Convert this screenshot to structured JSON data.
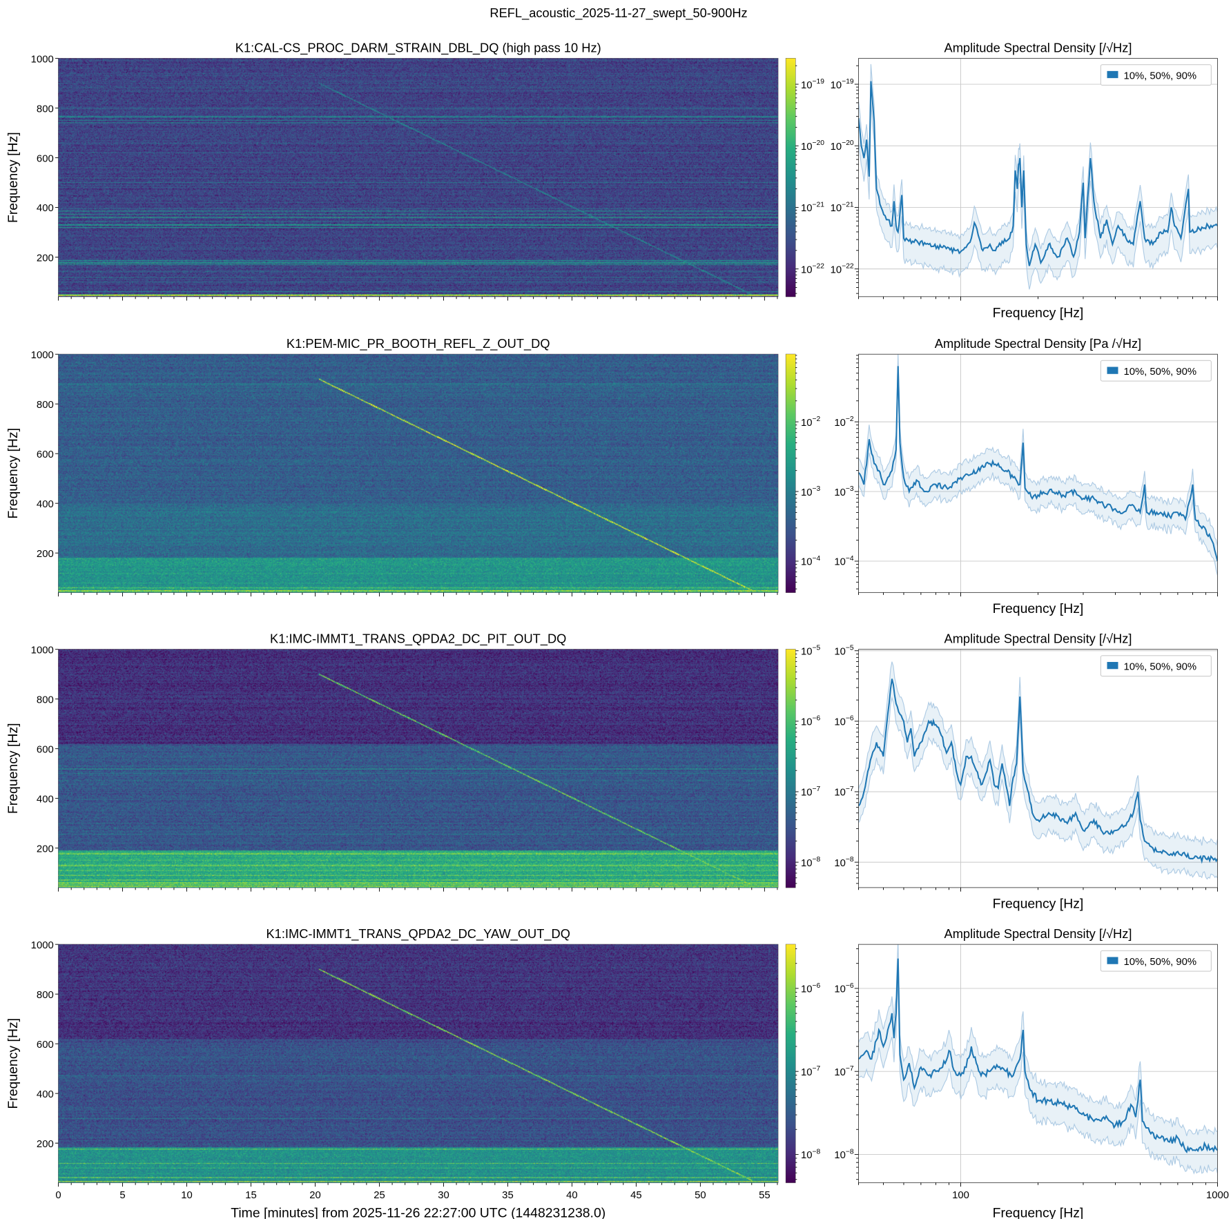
{
  "figure_title": "REFL_acoustic_2025-11-27_swept_50-900Hz",
  "colormap": [
    "#440154",
    "#472d7b",
    "#3b528b",
    "#2c728e",
    "#21918c",
    "#28ae80",
    "#5ec962",
    "#addc30",
    "#fde725"
  ],
  "asd_color": "#1f77b4",
  "chart_data": [
    {
      "type": "heatmap",
      "title": "K1:CAL-CS_PROC_DARM_STRAIN_DBL_DQ (high pass 10 Hz)",
      "ylabel": "Frequency [Hz]",
      "xlim": [
        0,
        56.05
      ],
      "ylim": [
        41,
        1000
      ],
      "xticks": [
        0,
        5,
        10,
        15,
        20,
        25,
        30,
        35,
        40,
        45,
        50,
        55
      ],
      "yticks": [
        200,
        400,
        600,
        800,
        1000
      ],
      "colorbar": {
        "scale": "log",
        "clim_log10": [
          -22.45,
          -18.58
        ],
        "tick_exponents": [
          -19,
          -20,
          -21,
          -22
        ]
      },
      "background_profile": [
        [
          41,
          1000,
          0.2
        ]
      ],
      "lines": [
        [
          45,
          0.7
        ],
        [
          50,
          0.55
        ],
        [
          62,
          0.2
        ],
        [
          100,
          0.12
        ],
        [
          120,
          0.15
        ],
        [
          140,
          0.1
        ],
        [
          170,
          0.3
        ],
        [
          175,
          0.3
        ],
        [
          180,
          0.25
        ],
        [
          185,
          0.3
        ],
        [
          190,
          0.15
        ],
        [
          320,
          0.25
        ],
        [
          330,
          0.3
        ],
        [
          345,
          0.2
        ],
        [
          360,
          0.3
        ],
        [
          372,
          0.3
        ],
        [
          385,
          0.25
        ],
        [
          395,
          0.15
        ],
        [
          420,
          0.1
        ],
        [
          480,
          0.12
        ],
        [
          500,
          0.15
        ],
        [
          520,
          0.12
        ],
        [
          560,
          0.08
        ],
        [
          620,
          0.08
        ],
        [
          660,
          0.1
        ],
        [
          740,
          0.18
        ],
        [
          750,
          0.2
        ],
        [
          765,
          0.18
        ],
        [
          800,
          0.08
        ],
        [
          880,
          0.12
        ],
        [
          900,
          0.08
        ]
      ],
      "sweep": {
        "start_min": 20.3,
        "start_hz": 900,
        "end_min": 54.0,
        "end_hz": 50,
        "level": 0.45
      }
    },
    {
      "type": "heatmap",
      "title": "K1:PEM-MIC_PR_BOOTH_REFL_Z_OUT_DQ",
      "ylabel": "Frequency [Hz]",
      "xlim": [
        0,
        56.05
      ],
      "ylim": [
        41,
        1000
      ],
      "xticks": [
        0,
        5,
        10,
        15,
        20,
        25,
        30,
        35,
        40,
        45,
        50,
        55
      ],
      "yticks": [
        200,
        400,
        600,
        800,
        1000
      ],
      "colorbar": {
        "scale": "log",
        "clim_log10": [
          -4.45,
          -1.03
        ],
        "tick_exponents": [
          -2,
          -3,
          -4
        ]
      },
      "background_profile": [
        [
          41,
          180,
          0.52
        ],
        [
          180,
          400,
          0.36
        ],
        [
          400,
          1000,
          0.3
        ]
      ],
      "lines": [
        [
          45,
          0.3
        ],
        [
          50,
          0.35
        ],
        [
          60,
          0.15
        ],
        [
          120,
          0.1
        ],
        [
          175,
          0.1
        ],
        [
          880,
          0.12
        ]
      ],
      "sweep": {
        "start_min": 20.3,
        "start_hz": 900,
        "end_min": 54.0,
        "end_hz": 50,
        "level": 0.95
      }
    },
    {
      "type": "heatmap",
      "title": "K1:IMC-IMMT1_TRANS_QPDA2_DC_PIT_OUT_DQ",
      "ylabel": "Frequency [Hz]",
      "xlim": [
        0,
        56.05
      ],
      "ylim": [
        41,
        1000
      ],
      "xticks": [
        0,
        5,
        10,
        15,
        20,
        25,
        30,
        35,
        40,
        45,
        50,
        55
      ],
      "yticks": [
        200,
        400,
        600,
        800,
        1000
      ],
      "colorbar": {
        "scale": "log",
        "clim_log10": [
          -8.36,
          -4.98
        ],
        "tick_exponents": [
          -5,
          -6,
          -7,
          -8
        ]
      },
      "background_profile": [
        [
          41,
          190,
          0.6
        ],
        [
          190,
          620,
          0.27
        ],
        [
          620,
          1000,
          0.14
        ]
      ],
      "lines": [
        [
          45,
          0.25
        ],
        [
          52,
          0.2
        ],
        [
          60,
          0.2
        ],
        [
          70,
          0.15
        ],
        [
          90,
          0.15
        ],
        [
          110,
          0.12
        ],
        [
          130,
          0.15
        ],
        [
          150,
          0.12
        ],
        [
          175,
          0.2
        ],
        [
          180,
          0.15
        ],
        [
          255,
          0.12
        ],
        [
          300,
          0.1
        ],
        [
          470,
          0.1
        ],
        [
          500,
          0.15
        ],
        [
          520,
          0.18
        ],
        [
          700,
          0.05
        ]
      ],
      "sweep": {
        "start_min": 20.3,
        "start_hz": 900,
        "end_min": 54.0,
        "end_hz": 50,
        "level": 0.8
      }
    },
    {
      "type": "heatmap",
      "title": "K1:IMC-IMMT1_TRANS_QPDA2_DC_YAW_OUT_DQ",
      "ylabel": "Frequency [Hz]",
      "xlabel": "Time [minutes] from 2025-11-26 22:27:00 UTC (1448231238.0)",
      "xlim": [
        0,
        56.05
      ],
      "ylim": [
        41,
        1000
      ],
      "xticks": [
        0,
        5,
        10,
        15,
        20,
        25,
        30,
        35,
        40,
        45,
        50,
        55
      ],
      "yticks": [
        200,
        400,
        600,
        800,
        1000
      ],
      "colorbar": {
        "scale": "log",
        "clim_log10": [
          -8.34,
          -5.47
        ],
        "tick_exponents": [
          -6,
          -7,
          -8
        ]
      },
      "background_profile": [
        [
          41,
          185,
          0.5
        ],
        [
          185,
          620,
          0.25
        ],
        [
          620,
          1000,
          0.15
        ]
      ],
      "lines": [
        [
          45,
          0.35
        ],
        [
          62,
          0.3
        ],
        [
          100,
          0.15
        ],
        [
          120,
          0.2
        ],
        [
          175,
          0.25
        ],
        [
          300,
          0.1
        ],
        [
          345,
          0.06
        ],
        [
          470,
          0.1
        ],
        [
          520,
          0.15
        ],
        [
          700,
          0.06
        ]
      ],
      "sweep": {
        "start_min": 20.3,
        "start_hz": 900,
        "end_min": 54.0,
        "end_hz": 50,
        "level": 0.85
      }
    },
    {
      "type": "line",
      "title": "Amplitude Spectral Density [/√Hz]",
      "xlabel": "Frequency [Hz]",
      "legend": "10%, 50%, 90%",
      "legend_position": "top-right",
      "xscale": "log",
      "xlim": [
        40,
        1000
      ],
      "xticks": [
        100,
        1000
      ],
      "yscale": "log",
      "ylim_log10": [
        -22.45,
        -18.58
      ],
      "ytick_exponents": [
        -19,
        -20,
        -21,
        -22
      ],
      "band_dex": [
        -0.35,
        0.25
      ],
      "freq_hz": [
        40,
        41,
        42,
        43,
        44,
        44.7,
        46,
        47,
        49,
        52,
        54,
        55,
        56,
        57,
        58,
        59,
        60,
        65,
        75,
        85,
        95,
        100,
        105,
        110,
        113,
        117,
        122,
        130,
        135,
        145,
        155,
        160,
        163,
        166,
        168,
        170,
        173,
        176,
        180,
        185,
        195,
        205,
        220,
        240,
        260,
        275,
        290,
        300,
        305,
        320,
        330,
        350,
        370,
        390,
        410,
        440,
        470,
        500,
        520,
        560,
        600,
        640,
        660,
        680,
        720,
        770,
        780,
        850,
        920,
        1000
      ],
      "median_log10": [
        -19.55,
        -20.0,
        -20.2,
        -19.9,
        -20.5,
        -18.95,
        -19.6,
        -20.7,
        -21.0,
        -21.2,
        -21.3,
        -20.9,
        -21.3,
        -21.4,
        -21.1,
        -20.8,
        -21.5,
        -21.55,
        -21.6,
        -21.65,
        -21.7,
        -21.72,
        -21.65,
        -21.5,
        -21.25,
        -21.45,
        -21.7,
        -21.6,
        -21.7,
        -21.55,
        -21.5,
        -21.3,
        -20.4,
        -20.7,
        -20.3,
        -20.2,
        -21.0,
        -20.4,
        -21.6,
        -21.95,
        -21.6,
        -21.9,
        -21.6,
        -21.8,
        -21.5,
        -21.8,
        -21.4,
        -20.6,
        -21.5,
        -20.2,
        -20.9,
        -21.5,
        -21.2,
        -21.6,
        -21.3,
        -21.5,
        -21.6,
        -20.9,
        -21.5,
        -21.6,
        -21.4,
        -21.4,
        -21.0,
        -21.3,
        -21.5,
        -20.7,
        -21.4,
        -21.35,
        -21.3,
        -21.3
      ]
    },
    {
      "type": "line",
      "title": "Amplitude Spectral Density [Pa /√Hz]",
      "xlabel": "Frequency [Hz]",
      "legend": "10%, 50%, 90%",
      "legend_position": "top-right",
      "xscale": "log",
      "xlim": [
        40,
        1000
      ],
      "xticks": [
        100,
        1000
      ],
      "yscale": "log",
      "ylim_log10": [
        -4.45,
        -1.03
      ],
      "ytick_exponents": [
        -2,
        -3,
        -4
      ],
      "band_dex": [
        -0.2,
        0.2
      ],
      "freq_hz": [
        40,
        42,
        44,
        46,
        48,
        50,
        52,
        54,
        56,
        57,
        58,
        60,
        63,
        68,
        72,
        80,
        90,
        100,
        110,
        120,
        130,
        140,
        150,
        160,
        170,
        175,
        178,
        190,
        200,
        220,
        250,
        280,
        300,
        330,
        360,
        400,
        430,
        460,
        500,
        520,
        530,
        600,
        650,
        700,
        750,
        800,
        820,
        900,
        950,
        1000
      ],
      "median_log10": [
        -2.73,
        -2.9,
        -2.25,
        -2.6,
        -2.7,
        -2.9,
        -2.8,
        -2.7,
        -2.4,
        -1.2,
        -2.3,
        -2.8,
        -3.0,
        -2.85,
        -3.0,
        -2.9,
        -2.95,
        -2.8,
        -2.75,
        -2.65,
        -2.6,
        -2.6,
        -2.7,
        -2.8,
        -2.9,
        -2.3,
        -2.95,
        -3.1,
        -3.05,
        -3.0,
        -3.05,
        -3.0,
        -3.1,
        -3.1,
        -3.2,
        -3.25,
        -3.3,
        -3.2,
        -3.3,
        -2.9,
        -3.3,
        -3.3,
        -3.35,
        -3.3,
        -3.4,
        -2.9,
        -3.4,
        -3.55,
        -3.7,
        -4.0
      ]
    },
    {
      "type": "line",
      "title": "Amplitude Spectral Density [/√Hz]",
      "xlabel": "Frequency [Hz]",
      "legend": "10%, 50%, 90%",
      "legend_position": "top-right",
      "xscale": "log",
      "xlim": [
        40,
        1000
      ],
      "xticks": [
        100,
        1000
      ],
      "yscale": "log",
      "ylim_log10": [
        -8.36,
        -4.98
      ],
      "ytick_exponents": [
        -5,
        -6,
        -7,
        -8
      ],
      "band_dex": [
        -0.25,
        0.25
      ],
      "freq_hz": [
        40,
        42,
        45,
        47,
        50,
        52,
        54,
        56,
        58,
        60,
        62,
        64,
        66,
        70,
        75,
        80,
        84,
        88,
        92,
        96,
        100,
        105,
        110,
        115,
        120,
        125,
        130,
        135,
        140,
        145,
        150,
        155,
        160,
        165,
        170,
        175,
        180,
        190,
        200,
        220,
        240,
        260,
        280,
        300,
        330,
        360,
        400,
        430,
        470,
        490,
        500,
        520,
        560,
        600,
        650,
        700,
        750,
        800,
        900,
        1000
      ],
      "median_log10": [
        -7.2,
        -7.0,
        -6.5,
        -6.3,
        -6.5,
        -5.9,
        -5.4,
        -5.75,
        -5.9,
        -6.0,
        -6.3,
        -6.1,
        -6.5,
        -6.3,
        -6.0,
        -6.05,
        -6.2,
        -6.45,
        -6.3,
        -6.7,
        -6.9,
        -6.5,
        -6.5,
        -6.7,
        -6.9,
        -6.75,
        -6.55,
        -6.9,
        -6.95,
        -6.6,
        -6.9,
        -7.2,
        -6.8,
        -6.6,
        -5.65,
        -6.7,
        -6.9,
        -7.3,
        -7.4,
        -7.3,
        -7.35,
        -7.45,
        -7.3,
        -7.55,
        -7.4,
        -7.6,
        -7.55,
        -7.5,
        -7.3,
        -7.0,
        -7.4,
        -7.7,
        -7.8,
        -7.85,
        -7.9,
        -7.85,
        -7.9,
        -7.95,
        -7.95,
        -7.95
      ]
    },
    {
      "type": "line",
      "title": "Amplitude Spectral Density [/√Hz]",
      "xlabel": "Frequency [Hz]",
      "xtick_labels": [
        "100",
        "1000"
      ],
      "legend": "10%, 50%, 90%",
      "legend_position": "top-right",
      "xscale": "log",
      "xlim": [
        40,
        1000
      ],
      "xticks": [
        100,
        1000
      ],
      "yscale": "log",
      "ylim_log10": [
        -8.34,
        -5.47
      ],
      "ytick_exponents": [
        -6,
        -7,
        -8
      ],
      "band_dex": [
        -0.25,
        0.22
      ],
      "freq_hz": [
        40,
        43,
        45,
        48,
        50,
        52,
        54,
        55,
        56,
        57,
        58,
        60,
        63,
        66,
        70,
        75,
        80,
        85,
        90,
        95,
        100,
        105,
        110,
        115,
        120,
        130,
        140,
        150,
        160,
        170,
        175,
        178,
        185,
        200,
        220,
        250,
        280,
        300,
        330,
        360,
        400,
        430,
        460,
        480,
        500,
        510,
        550,
        600,
        650,
        700,
        750,
        800,
        900,
        1000
      ],
      "median_log10": [
        -6.85,
        -6.75,
        -6.85,
        -6.5,
        -6.7,
        -6.5,
        -6.3,
        -6.6,
        -6.3,
        -5.64,
        -6.8,
        -7.1,
        -6.9,
        -7.2,
        -6.95,
        -7.05,
        -7.0,
        -6.95,
        -6.75,
        -7.0,
        -7.05,
        -6.95,
        -6.7,
        -6.9,
        -7.05,
        -7.0,
        -6.95,
        -7.0,
        -7.05,
        -6.85,
        -6.5,
        -7.0,
        -7.2,
        -7.35,
        -7.35,
        -7.4,
        -7.45,
        -7.5,
        -7.6,
        -7.55,
        -7.65,
        -7.6,
        -7.4,
        -7.55,
        -7.1,
        -7.6,
        -7.75,
        -7.8,
        -7.85,
        -7.8,
        -7.95,
        -7.95,
        -7.9,
        -7.95
      ]
    }
  ]
}
